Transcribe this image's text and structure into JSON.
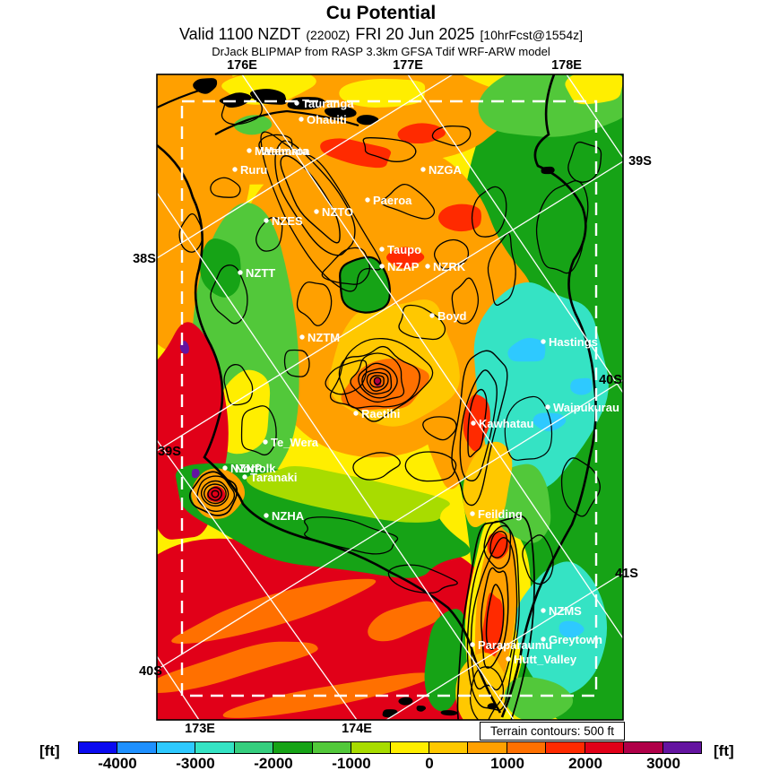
{
  "header": {
    "title": "Cu Potential",
    "valid_main_1": "Valid 1100 NZDT",
    "valid_small_1": "(2200Z)",
    "valid_main_2": "FRI 20 Jun 2025",
    "valid_small_2": "[10hrFcst@1554z]",
    "model_line": "DrJack BLIPMAP from RASP 3.3km GFSA Tdif WRF-ARW model"
  },
  "map": {
    "axis": {
      "top": [
        "176E",
        "177E",
        "178E"
      ],
      "bottom": [
        "173E",
        "174E"
      ],
      "left": [
        "38S",
        "39S",
        "40S"
      ],
      "right": [
        "39S",
        "40S",
        "41S"
      ]
    },
    "legend_box": "Terrain contours: 500 ft",
    "sites": [
      "Tauranga",
      "Ohauiti",
      "Matamata",
      "Waharoa",
      "Ruru",
      "NZGA",
      "Paeroa",
      "NZTO",
      "NZES",
      "Taupo",
      "NZAP",
      "NZRK",
      "NZTT",
      "Boyd",
      "NZTM",
      "Hastings",
      "Raetihi",
      "Waipukurau",
      "Kawhatau",
      "Te_Wera",
      "NZNP",
      "Norfolk",
      "Taranaki",
      "NZHA",
      "Feilding",
      "NZMS",
      "Greytown",
      "Paraparaumu",
      "Hutt_Valley"
    ]
  },
  "colorbar": {
    "unit_left": "[ft]",
    "unit_right": "[ft]",
    "tick_labels": [
      "-4000",
      "-3000",
      "-2000",
      "-1000",
      "0",
      "1000",
      "2000",
      "3000"
    ],
    "tick_values": [
      -4000,
      -3000,
      -2000,
      -1000,
      0,
      1000,
      2000,
      3000
    ],
    "colors": [
      "#0a0af0",
      "#1e90ff",
      "#2ec9ff",
      "#35e3c4",
      "#35ce7e",
      "#16a316",
      "#52c83a",
      "#a8dc00",
      "#ffee00",
      "#ffc800",
      "#ffa000",
      "#ff7000",
      "#ff2a00",
      "#e10018",
      "#b00048",
      "#6414a0"
    ]
  }
}
